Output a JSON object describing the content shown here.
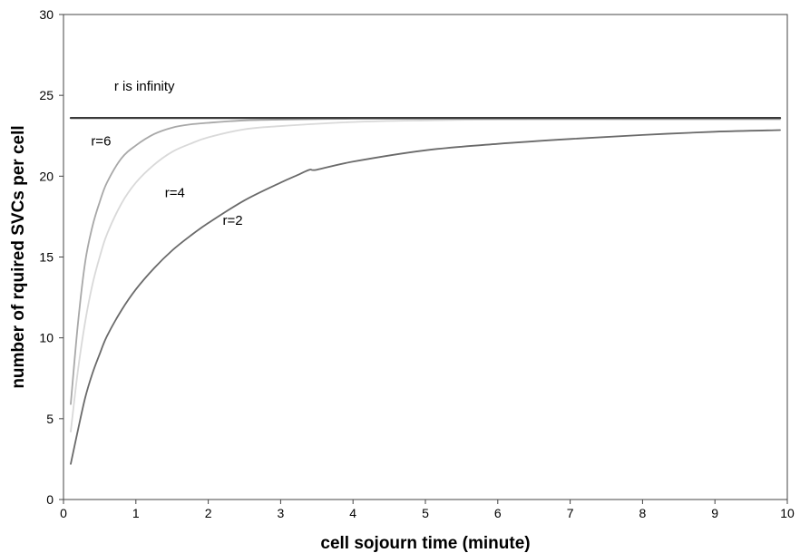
{
  "chart_data": {
    "type": "line",
    "xlabel": "cell sojourn time (minute)",
    "ylabel": "number of rquired SVCs per cell",
    "xlim": [
      0,
      10
    ],
    "ylim": [
      0,
      30
    ],
    "x_ticks": [
      0,
      1,
      2,
      3,
      4,
      5,
      6,
      7,
      8,
      9,
      10
    ],
    "y_ticks": [
      0,
      5,
      10,
      15,
      20,
      25,
      30
    ],
    "grid": false,
    "legend": "none",
    "series": [
      {
        "name": "r is infinity",
        "color": "#3a3a3a",
        "x": [
          0.1,
          9.9
        ],
        "y": [
          23.6,
          23.6
        ]
      },
      {
        "name": "r=6",
        "color": "#a8a8a8",
        "x": [
          0.1,
          0.2,
          0.3,
          0.4,
          0.5,
          0.6,
          0.8,
          1.0,
          1.25,
          1.5,
          1.75,
          2.0,
          2.5,
          3.0,
          4.0,
          5.0,
          6.0,
          8.0,
          9.9
        ],
        "y": [
          5.9,
          10.9,
          14.7,
          16.9,
          18.4,
          19.6,
          21.1,
          21.9,
          22.6,
          23.0,
          23.2,
          23.3,
          23.45,
          23.5,
          23.55,
          23.55,
          23.55,
          23.55,
          23.55
        ]
      },
      {
        "name": "r=4",
        "color": "#d9d9d9",
        "x": [
          0.1,
          0.2,
          0.3,
          0.4,
          0.5,
          0.6,
          0.8,
          1.0,
          1.25,
          1.5,
          1.75,
          2.0,
          2.5,
          3.0,
          4.0,
          5.0,
          6.0,
          8.0,
          9.9
        ],
        "y": [
          4.2,
          8.0,
          11.0,
          13.3,
          15.0,
          16.4,
          18.3,
          19.6,
          20.7,
          21.5,
          22.0,
          22.4,
          22.9,
          23.1,
          23.35,
          23.45,
          23.5,
          23.5,
          23.5
        ]
      },
      {
        "name": "r=2",
        "color": "#6a6a6a",
        "x": [
          0.1,
          0.2,
          0.3,
          0.4,
          0.5,
          0.6,
          0.8,
          1.0,
          1.25,
          1.5,
          1.75,
          2.0,
          2.5,
          3.0,
          3.25,
          3.4,
          3.5,
          4.0,
          5.0,
          6.0,
          7.0,
          8.0,
          9.0,
          9.9
        ],
        "y": [
          2.2,
          4.3,
          6.3,
          7.8,
          9.0,
          10.1,
          11.7,
          13.0,
          14.3,
          15.4,
          16.3,
          17.1,
          18.5,
          19.6,
          20.1,
          20.4,
          20.4,
          20.9,
          21.6,
          22.0,
          22.3,
          22.55,
          22.75,
          22.85
        ]
      }
    ],
    "annotations": [
      {
        "text": "r is infinity",
        "x": 0.7,
        "y": 25.3
      },
      {
        "text": "r=6",
        "x": 0.38,
        "y": 21.9
      },
      {
        "text": "r=4",
        "x": 1.4,
        "y": 18.7
      },
      {
        "text": "r=2",
        "x": 2.2,
        "y": 17.0
      }
    ]
  }
}
